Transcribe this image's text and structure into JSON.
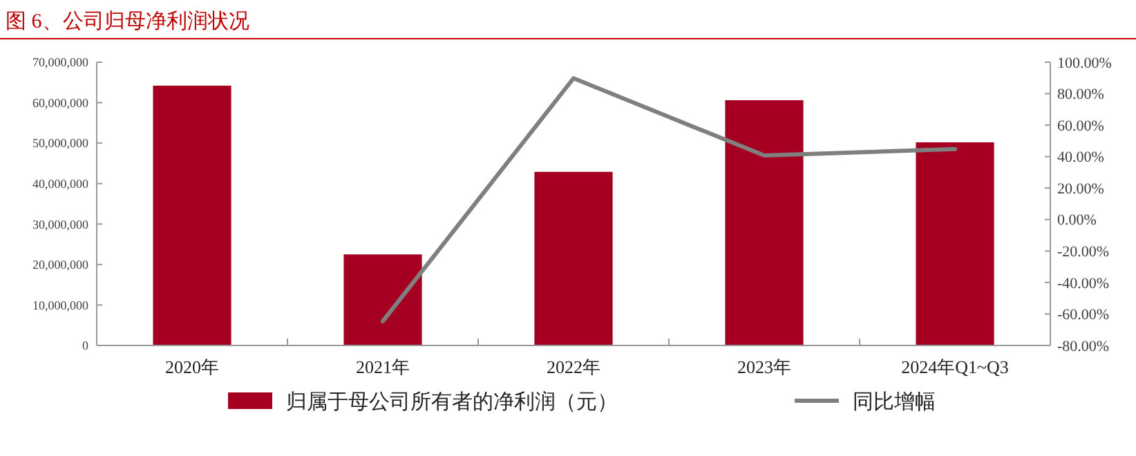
{
  "chart_data": {
    "type": "bar",
    "title": "图 6、公司归母净利润状况",
    "categories": [
      "2020年",
      "2021年",
      "2022年",
      "2023年",
      "2024年Q1~Q3"
    ],
    "series": [
      {
        "name": "归属于母公司所有者的净利润（元）",
        "color": "#a50021",
        "values": [
          64200000,
          22500000,
          42900000,
          60600000,
          50200000
        ]
      },
      {
        "name": "同比增幅",
        "type": "line",
        "axis": "y2",
        "color": "#7f7f7f",
        "values": [
          null,
          -64.6,
          89.8,
          40.7,
          44.8
        ]
      }
    ],
    "ylim": [
      0,
      70000000
    ],
    "yticks": [
      {
        "value": 0,
        "label": "0"
      },
      {
        "value": 10000000,
        "label": "10,000,000"
      },
      {
        "value": 20000000,
        "label": "20,000,000"
      },
      {
        "value": 30000000,
        "label": "30,000,000"
      },
      {
        "value": 40000000,
        "label": "40,000,000"
      },
      {
        "value": 50000000,
        "label": "50,000,000"
      },
      {
        "value": 60000000,
        "label": "60,000,000"
      },
      {
        "value": 70000000,
        "label": "70,000,000"
      }
    ],
    "y2lim": [
      -80,
      100
    ],
    "y2ticks": [
      {
        "value": -80,
        "label": "-80.00%"
      },
      {
        "value": -60,
        "label": "-60.00%"
      },
      {
        "value": -40,
        "label": "-40.00%"
      },
      {
        "value": -20,
        "label": "-20.00%"
      },
      {
        "value": 0,
        "label": "0.00%"
      },
      {
        "value": 20,
        "label": "20.00%"
      },
      {
        "value": 40,
        "label": "40.00%"
      },
      {
        "value": 60,
        "label": "60.00%"
      },
      {
        "value": 80,
        "label": "80.00%"
      },
      {
        "value": 100,
        "label": "100.00%"
      }
    ],
    "legend": "bottom",
    "grid": false
  }
}
